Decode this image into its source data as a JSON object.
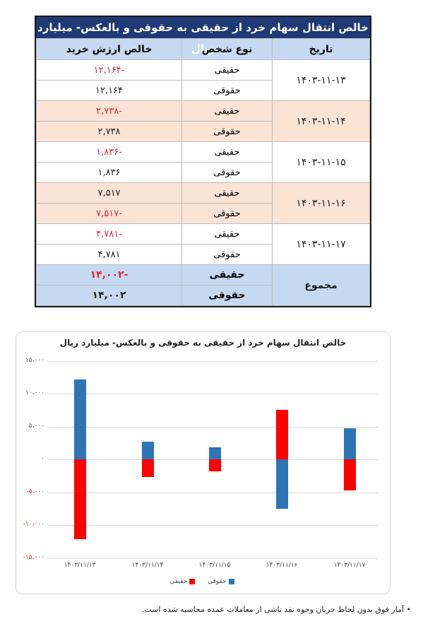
{
  "table": {
    "title": "خالص انتقال سهام خرد از حقیقی به حقوقی و بالعکس- میلیارد ریال",
    "headers": {
      "date": "تاریخ",
      "person_type": "نوع شخص",
      "net_value": "خالص ارزش خرید"
    },
    "groups": [
      {
        "date": "۱۴۰۳-۱۱-۱۳",
        "band": "white",
        "rows": [
          {
            "type": "حقیقی",
            "value": "-۱۲,۱۶۴",
            "negative": true
          },
          {
            "type": "حقوقی",
            "value": "۱۲,۱۶۴",
            "negative": false
          }
        ]
      },
      {
        "date": "۱۴۰۳-۱۱-۱۴",
        "band": "peach",
        "rows": [
          {
            "type": "حقیقی",
            "value": "-۲,۷۳۸",
            "negative": true
          },
          {
            "type": "حقوقی",
            "value": "۲,۷۳۸",
            "negative": false
          }
        ]
      },
      {
        "date": "۱۴۰۳-۱۱-۱۵",
        "band": "white",
        "rows": [
          {
            "type": "حقیقی",
            "value": "-۱,۸۳۶",
            "negative": true
          },
          {
            "type": "حقوقی",
            "value": "۱,۸۳۶",
            "negative": false
          }
        ]
      },
      {
        "date": "۱۴۰۳-۱۱-۱۶",
        "band": "peach",
        "rows": [
          {
            "type": "حقیقی",
            "value": "۷,۵۱۷",
            "negative": false
          },
          {
            "type": "حقوقی",
            "value": "-۷,۵۱۷",
            "negative": true
          }
        ]
      },
      {
        "date": "۱۴۰۳-۱۱-۱۷",
        "band": "white",
        "rows": [
          {
            "type": "حقیقی",
            "value": "-۴,۷۸۱",
            "negative": true
          },
          {
            "type": "حقوقی",
            "value": "۴,۷۸۱",
            "negative": false
          }
        ]
      }
    ],
    "total": {
      "label": "مجموع",
      "rows": [
        {
          "type": "حقیقی",
          "value": "-۱۴,۰۰۲",
          "negative": true
        },
        {
          "type": "حقوقی",
          "value": "۱۴,۰۰۲",
          "negative": false
        }
      ]
    }
  },
  "chart_data": {
    "type": "bar",
    "stacked": true,
    "title": "خالص انتقال سهام خرد از حقیقی به حقوقی و بالعکس- میلیارد ریال",
    "xlabel": "",
    "ylabel": "",
    "categories": [
      "۱۴۰۳/۱۱/۱۳",
      "۱۴۰۳/۱۱/۱۴",
      "۱۴۰۳/۱۱/۱۵",
      "۱۴۰۳/۱۱/۱۶",
      "۱۴۰۳/۱۱/۱۷"
    ],
    "series": [
      {
        "name": "حقیقی",
        "color": "#ff0000",
        "values": [
          -12164,
          -2738,
          -1836,
          7517,
          -4781
        ]
      },
      {
        "name": "حقوقی",
        "color": "#2e75b6",
        "values": [
          12164,
          2738,
          1836,
          -7517,
          4781
        ]
      }
    ],
    "ylim": [
      -15000,
      15000
    ],
    "yticks": [
      {
        "v": 15000,
        "label": "۱۵،۰۰۰"
      },
      {
        "v": 10000,
        "label": "۱۰،۰۰۰"
      },
      {
        "v": 5000,
        "label": "۵،۰۰۰"
      },
      {
        "v": 0,
        "label": "۰"
      },
      {
        "v": -5000,
        "label": "-۵،۰۰۰"
      },
      {
        "v": -10000,
        "label": "-۱۰،۰۰۰"
      },
      {
        "v": -15000,
        "label": "-۱۵،۰۰۰"
      }
    ],
    "grid": true,
    "legend_position": "bottom"
  },
  "footnote": "• آمار فوق بدون لحاظ جریان وجوه نقد ناشی از معاملات عمده محاسبه شده است."
}
